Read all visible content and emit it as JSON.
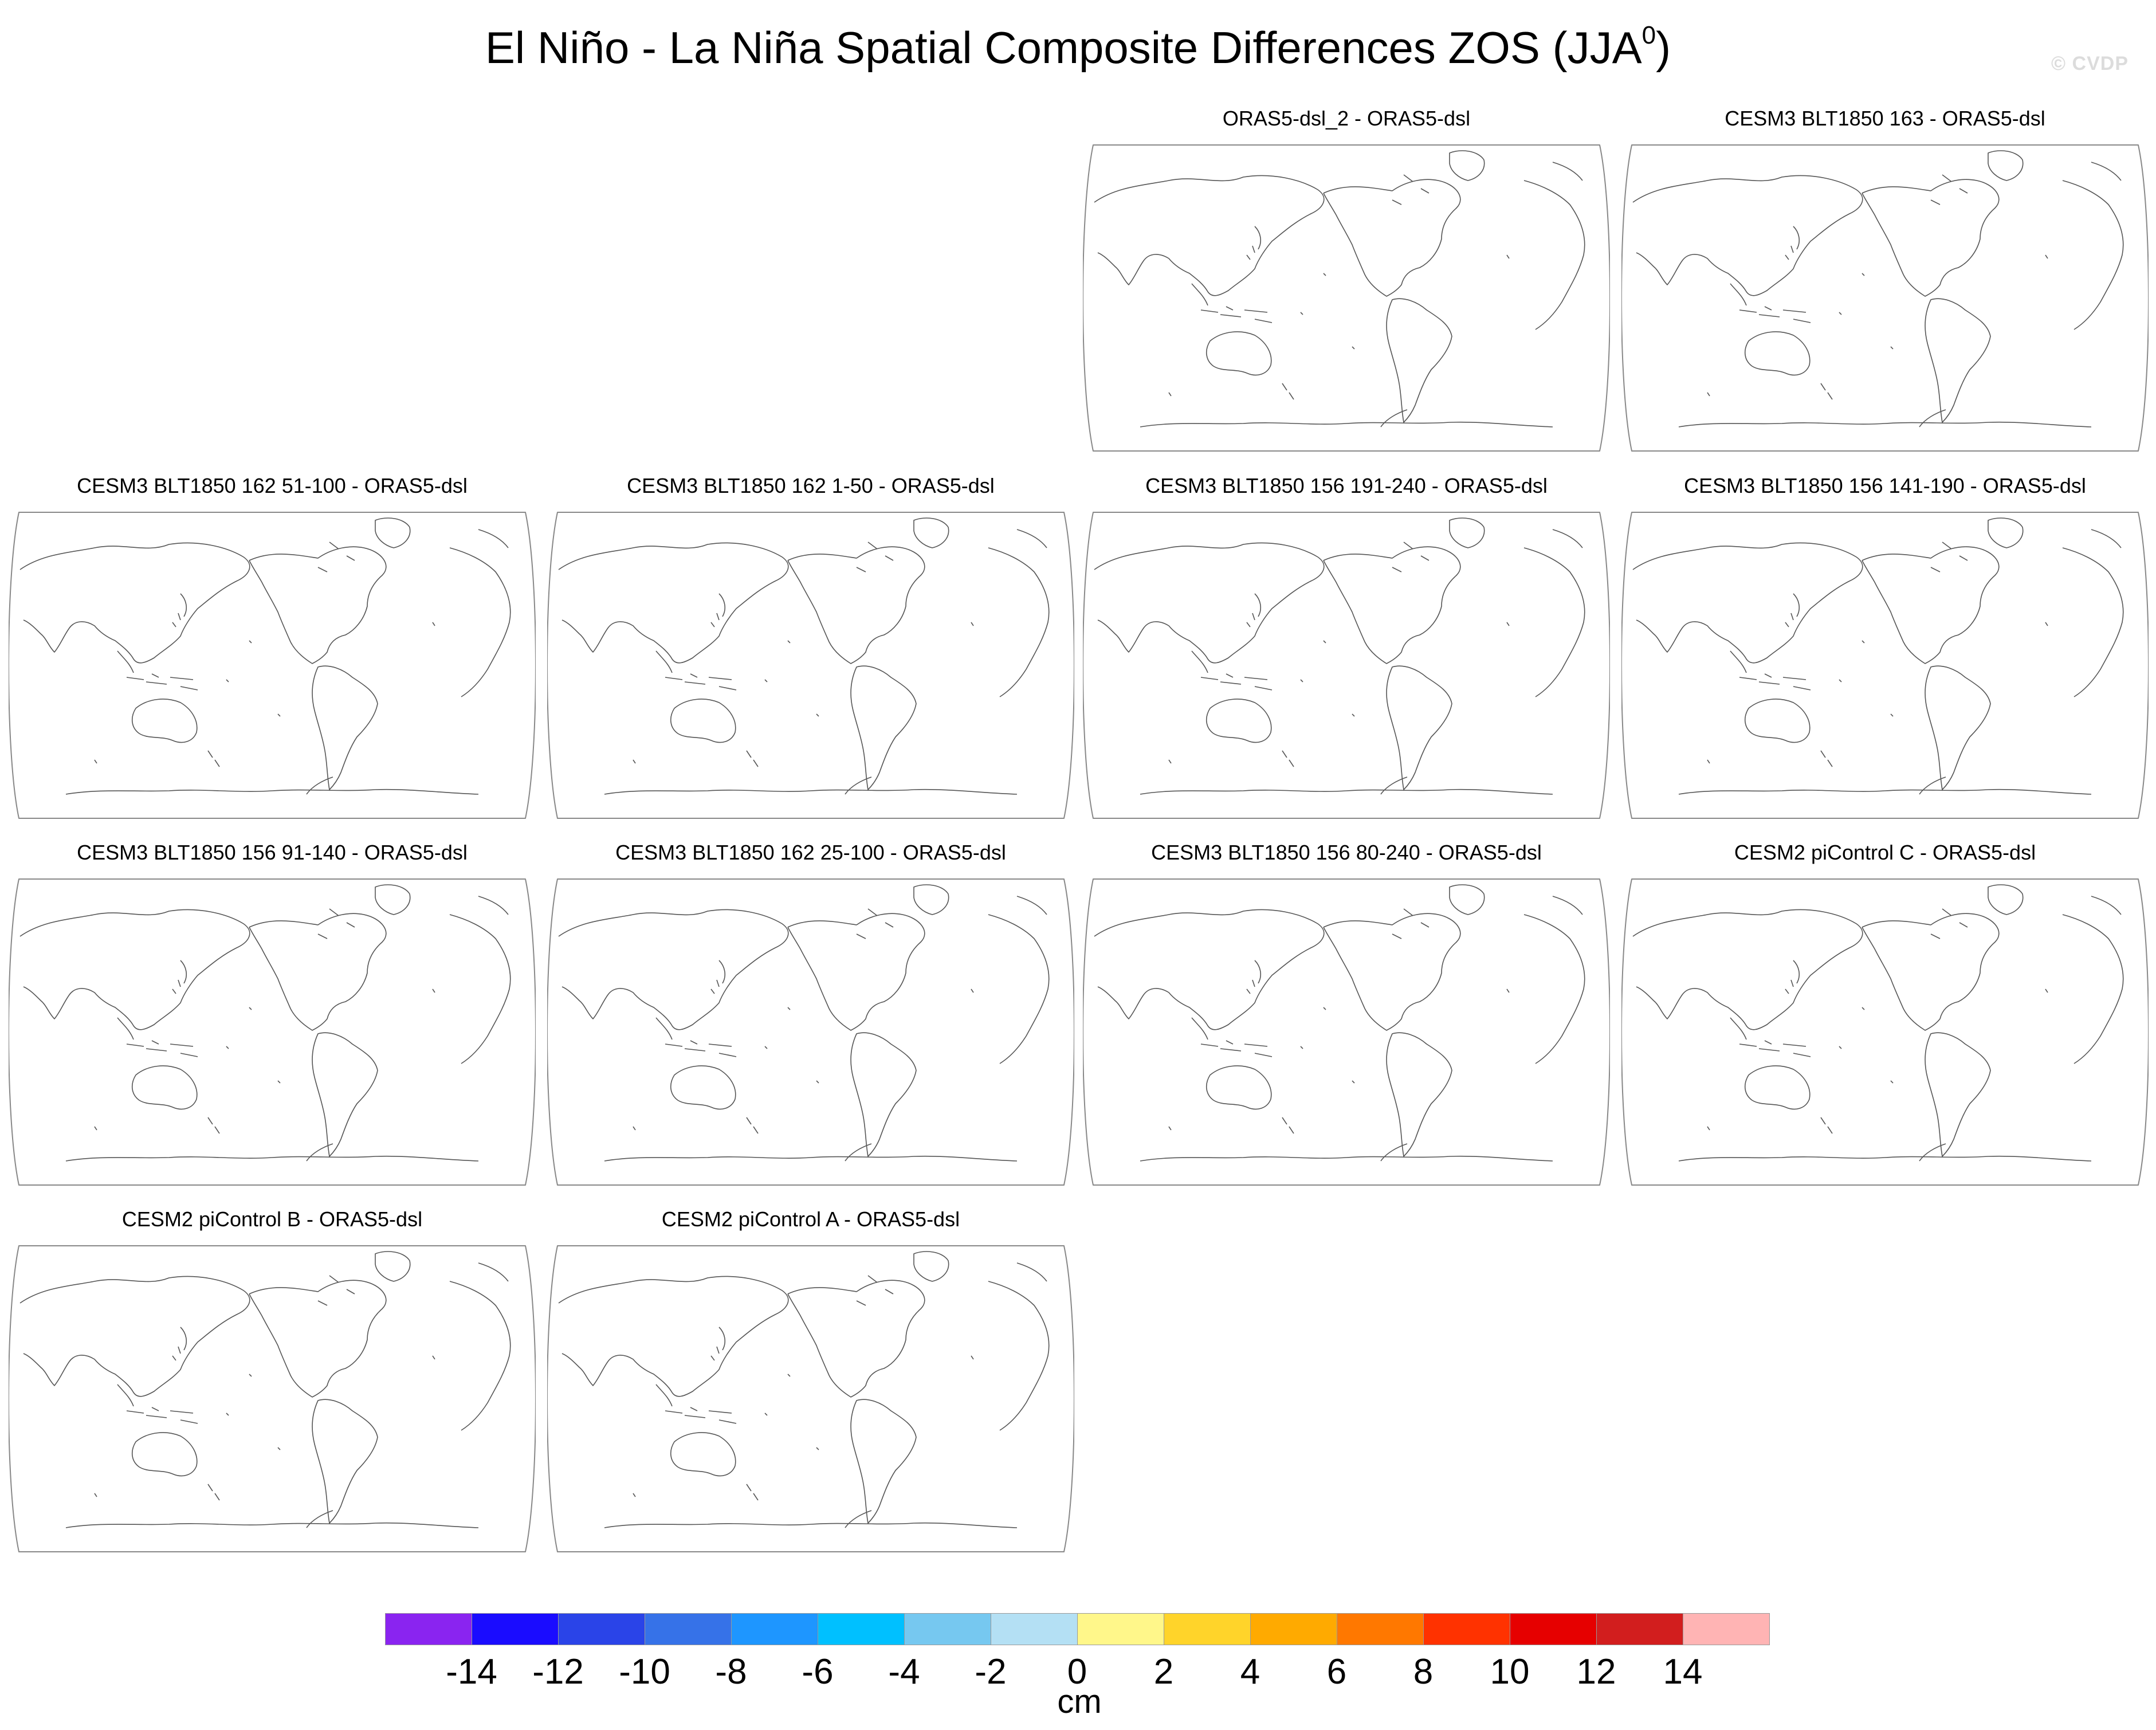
{
  "figure": {
    "title": "El Niño - La Niña Spatial Composite Differences ZOS (JJA",
    "title_sup": "0",
    "title_close": ")",
    "watermark": "© CVDP"
  },
  "panels": [
    {
      "title": "ORAS5-dsl_2 - ORAS5-dsl"
    },
    {
      "title": "CESM3 BLT1850 163 - ORAS5-dsl"
    },
    {
      "title": "CESM3 BLT1850 162 51-100 - ORAS5-dsl"
    },
    {
      "title": "CESM3 BLT1850 162 1-50 - ORAS5-dsl"
    },
    {
      "title": "CESM3 BLT1850 156 191-240 - ORAS5-dsl"
    },
    {
      "title": "CESM3 BLT1850 156 141-190 - ORAS5-dsl"
    },
    {
      "title": "CESM3 BLT1850 156 91-140 - ORAS5-dsl"
    },
    {
      "title": "CESM3 BLT1850 162 25-100 - ORAS5-dsl"
    },
    {
      "title": "CESM3 BLT1850 156 80-240 - ORAS5-dsl"
    },
    {
      "title": "CESM2 piControl C - ORAS5-dsl"
    },
    {
      "title": "CESM2 piControl B - ORAS5-dsl"
    },
    {
      "title": "CESM2 piControl A - ORAS5-dsl"
    }
  ],
  "colorbar": {
    "unit": "cm",
    "ticks": [
      "-14",
      "-12",
      "-10",
      "-8",
      "-6",
      "-4",
      "-2",
      "0",
      "2",
      "4",
      "6",
      "8",
      "10",
      "12",
      "14"
    ],
    "colors": [
      "#8a24f0",
      "#1a0cff",
      "#2a44e8",
      "#3672e8",
      "#1e96ff",
      "#00c0ff",
      "#76c8f0",
      "#b4e0f4",
      "#fff78a",
      "#ffd42a",
      "#ffaa00",
      "#ff7800",
      "#ff3200",
      "#e60000",
      "#d21e1e",
      "#ffb4b4"
    ]
  }
}
